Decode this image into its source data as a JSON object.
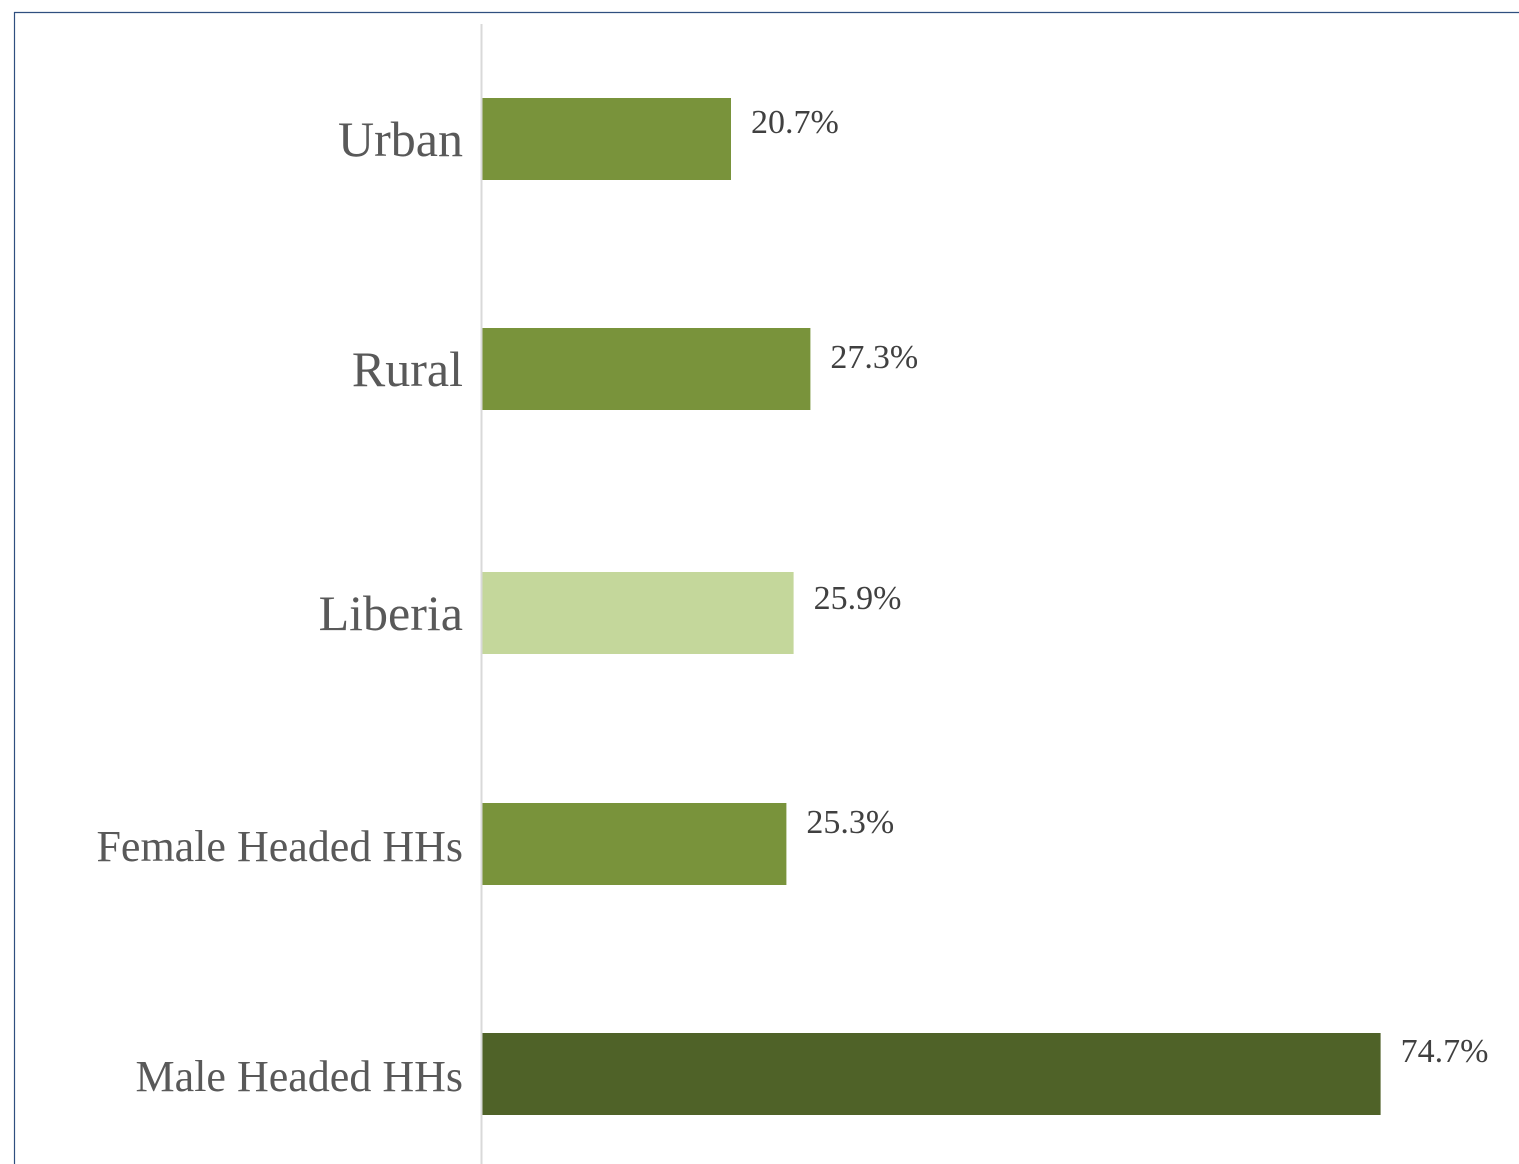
{
  "chart_data": {
    "type": "bar",
    "orientation": "horizontal",
    "categories": [
      "Urban",
      "Rural",
      "Liberia",
      "Female Headed HHs",
      "Male Headed HHs"
    ],
    "values": [
      20.7,
      27.3,
      25.9,
      25.3,
      74.7
    ],
    "data_labels": [
      "20.7%",
      "27.3%",
      "25.9%",
      "25.3%",
      "74.7%"
    ],
    "value_unit": "%",
    "bar_colors": [
      "#79933b",
      "#79933b",
      "#c4d79b",
      "#79933b",
      "#4f6228"
    ],
    "xlim": [
      0,
      75
    ],
    "grid": false,
    "legend": "none"
  },
  "colors": {
    "frame_border": "#2f4f7f",
    "axis_line": "#d9d9d9",
    "category_text": "#595959",
    "label_text": "#404040"
  }
}
